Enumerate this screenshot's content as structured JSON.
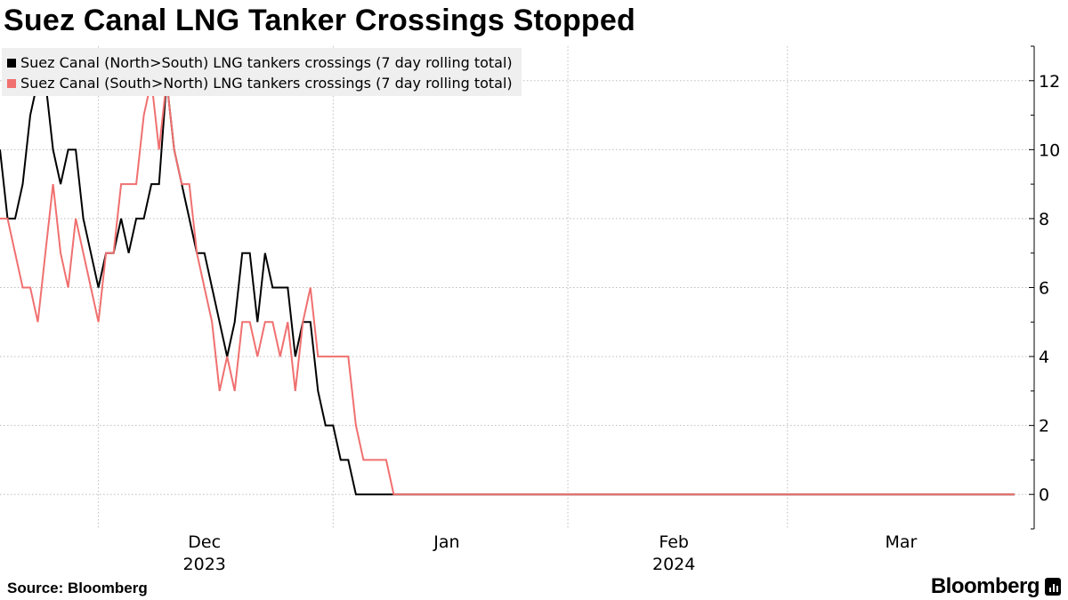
{
  "chart_data": {
    "type": "line",
    "title": "Suez Canal LNG Tanker Crossings Stopped",
    "x_start": "2023-11-18",
    "x_end": "2024-03-31",
    "ylim": [
      -1,
      13
    ],
    "y_ticks": [
      0,
      2,
      4,
      6,
      8,
      10,
      12
    ],
    "y_axis_position": "right",
    "x_gridlines": [
      "2023-12-01",
      "2024-01-01",
      "2024-02-01",
      "2024-03-01"
    ],
    "grid": true,
    "legend_position": "top-left",
    "x_tick_labels": [
      {
        "label": "Dec",
        "sub": "2023",
        "date": "2023-12-15"
      },
      {
        "label": "Jan",
        "sub": "",
        "date": "2024-01-16"
      },
      {
        "label": "Feb",
        "sub": "2024",
        "date": "2024-02-15"
      },
      {
        "label": "Mar",
        "sub": "",
        "date": "2024-03-16"
      }
    ],
    "series": [
      {
        "name": "Suez Canal (North>South) LNG tankers crossings (7 day rolling total)",
        "color": "#000000",
        "points": [
          [
            "2023-11-18",
            10
          ],
          [
            "2023-11-19",
            8
          ],
          [
            "2023-11-20",
            8
          ],
          [
            "2023-11-21",
            9
          ],
          [
            "2023-11-22",
            11
          ],
          [
            "2023-11-23",
            12
          ],
          [
            "2023-11-24",
            12
          ],
          [
            "2023-11-25",
            10
          ],
          [
            "2023-11-26",
            9
          ],
          [
            "2023-11-27",
            10
          ],
          [
            "2023-11-28",
            10
          ],
          [
            "2023-11-29",
            8
          ],
          [
            "2023-11-30",
            7
          ],
          [
            "2023-12-01",
            6
          ],
          [
            "2023-12-02",
            7
          ],
          [
            "2023-12-03",
            7
          ],
          [
            "2023-12-04",
            8
          ],
          [
            "2023-12-05",
            7
          ],
          [
            "2023-12-06",
            8
          ],
          [
            "2023-12-07",
            8
          ],
          [
            "2023-12-08",
            9
          ],
          [
            "2023-12-09",
            9
          ],
          [
            "2023-12-10",
            12
          ],
          [
            "2023-12-11",
            10
          ],
          [
            "2023-12-12",
            9
          ],
          [
            "2023-12-13",
            8
          ],
          [
            "2023-12-14",
            7
          ],
          [
            "2023-12-15",
            7
          ],
          [
            "2023-12-16",
            6
          ],
          [
            "2023-12-17",
            5
          ],
          [
            "2023-12-18",
            4
          ],
          [
            "2023-12-19",
            5
          ],
          [
            "2023-12-20",
            7
          ],
          [
            "2023-12-21",
            7
          ],
          [
            "2023-12-22",
            5
          ],
          [
            "2023-12-23",
            7
          ],
          [
            "2023-12-24",
            6
          ],
          [
            "2023-12-25",
            6
          ],
          [
            "2023-12-26",
            6
          ],
          [
            "2023-12-27",
            4
          ],
          [
            "2023-12-28",
            5
          ],
          [
            "2023-12-29",
            5
          ],
          [
            "2023-12-30",
            3
          ],
          [
            "2023-12-31",
            2
          ],
          [
            "2024-01-01",
            2
          ],
          [
            "2024-01-02",
            1
          ],
          [
            "2024-01-03",
            1
          ],
          [
            "2024-01-04",
            0
          ],
          [
            "2024-01-05",
            0
          ],
          [
            "2024-01-10",
            0
          ],
          [
            "2024-03-31",
            0
          ]
        ]
      },
      {
        "name": "Suez Canal (South>North) LNG tankers crossings (7 day rolling total)",
        "color": "#f07070",
        "points": [
          [
            "2023-11-18",
            8
          ],
          [
            "2023-11-19",
            8
          ],
          [
            "2023-11-20",
            7
          ],
          [
            "2023-11-21",
            6
          ],
          [
            "2023-11-22",
            6
          ],
          [
            "2023-11-23",
            5
          ],
          [
            "2023-11-24",
            7
          ],
          [
            "2023-11-25",
            9
          ],
          [
            "2023-11-26",
            7
          ],
          [
            "2023-11-27",
            6
          ],
          [
            "2023-11-28",
            8
          ],
          [
            "2023-11-29",
            7
          ],
          [
            "2023-11-30",
            6
          ],
          [
            "2023-12-01",
            5
          ],
          [
            "2023-12-02",
            7
          ],
          [
            "2023-12-03",
            7
          ],
          [
            "2023-12-04",
            9
          ],
          [
            "2023-12-05",
            9
          ],
          [
            "2023-12-06",
            9
          ],
          [
            "2023-12-07",
            11
          ],
          [
            "2023-12-08",
            12
          ],
          [
            "2023-12-09",
            10
          ],
          [
            "2023-12-10",
            12
          ],
          [
            "2023-12-11",
            10
          ],
          [
            "2023-12-12",
            9
          ],
          [
            "2023-12-13",
            9
          ],
          [
            "2023-12-14",
            7
          ],
          [
            "2023-12-15",
            6
          ],
          [
            "2023-12-16",
            5
          ],
          [
            "2023-12-17",
            3
          ],
          [
            "2023-12-18",
            4
          ],
          [
            "2023-12-19",
            3
          ],
          [
            "2023-12-20",
            5
          ],
          [
            "2023-12-21",
            5
          ],
          [
            "2023-12-22",
            4
          ],
          [
            "2023-12-23",
            5
          ],
          [
            "2023-12-24",
            5
          ],
          [
            "2023-12-25",
            4
          ],
          [
            "2023-12-26",
            5
          ],
          [
            "2023-12-27",
            3
          ],
          [
            "2023-12-28",
            5
          ],
          [
            "2023-12-29",
            6
          ],
          [
            "2023-12-30",
            4
          ],
          [
            "2023-12-31",
            4
          ],
          [
            "2024-01-01",
            4
          ],
          [
            "2024-01-02",
            4
          ],
          [
            "2024-01-03",
            4
          ],
          [
            "2024-01-04",
            2
          ],
          [
            "2024-01-05",
            1
          ],
          [
            "2024-01-06",
            1
          ],
          [
            "2024-01-07",
            1
          ],
          [
            "2024-01-08",
            1
          ],
          [
            "2024-01-09",
            0
          ],
          [
            "2024-03-31",
            0
          ]
        ]
      }
    ]
  },
  "footer": {
    "source": "Source: Bloomberg",
    "brand": "Bloomberg"
  }
}
